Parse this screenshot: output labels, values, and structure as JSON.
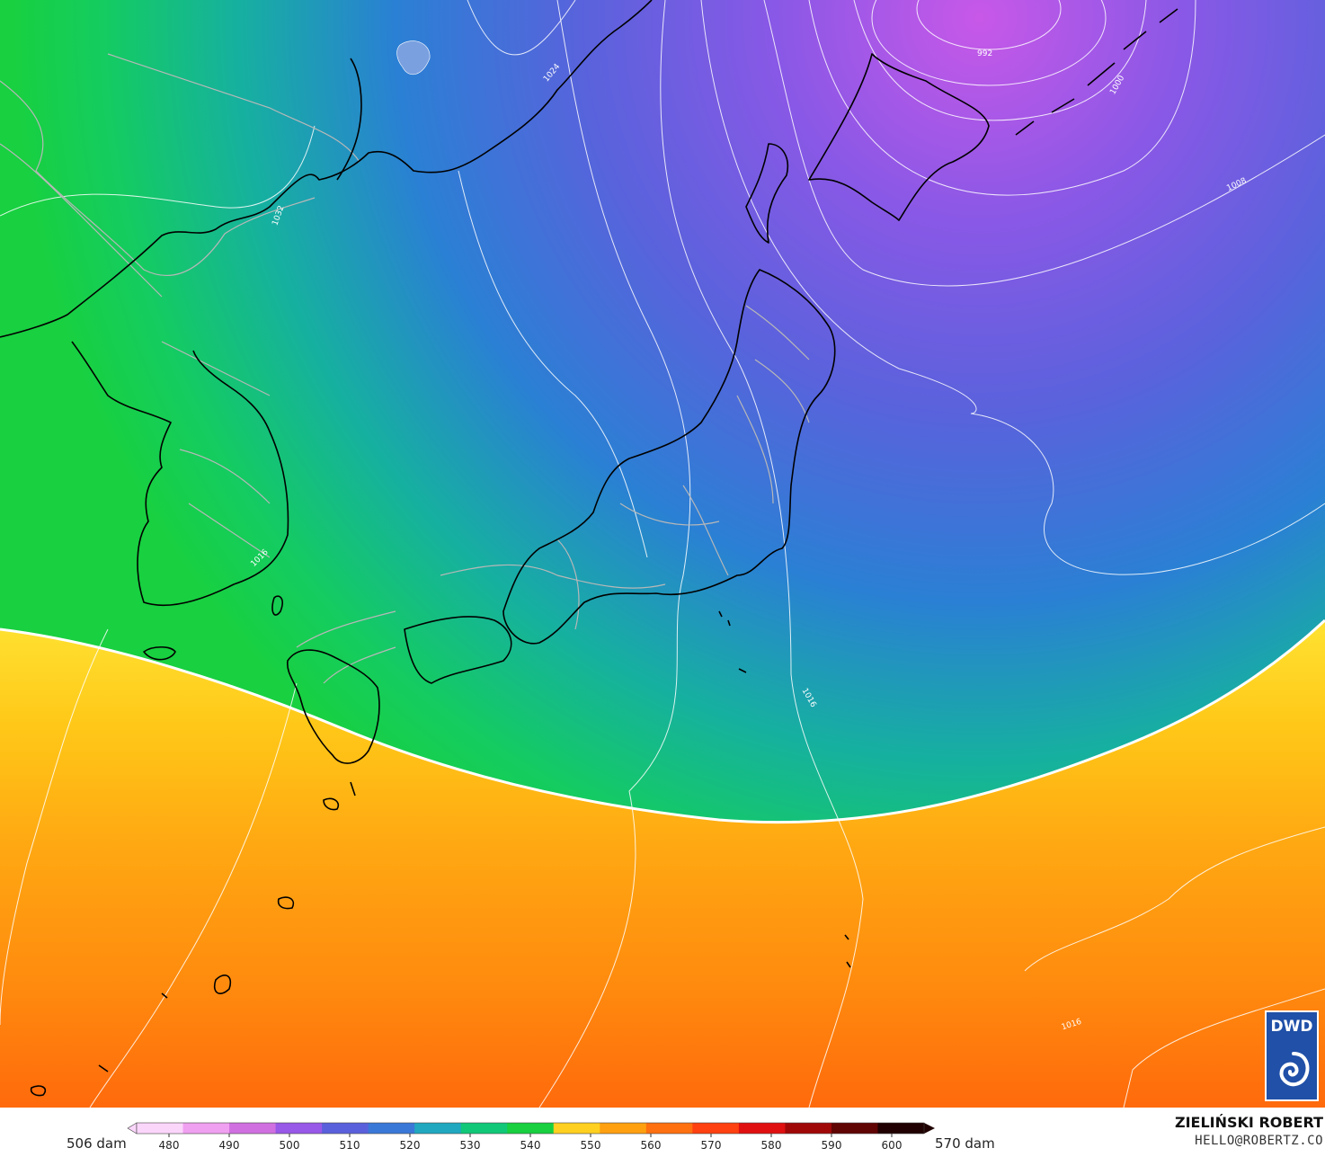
{
  "colorbar": {
    "left_label": "506 dam",
    "right_label": "570 dam",
    "ticks": [
      "480",
      "490",
      "500",
      "510",
      "520",
      "530",
      "540",
      "550",
      "560",
      "570",
      "580",
      "590",
      "600"
    ],
    "colors": [
      "#fbd6fb",
      "#f0a0f0",
      "#d070e0",
      "#9858e8",
      "#5a60dc",
      "#3a78d8",
      "#20a8c0",
      "#10c878",
      "#18d040",
      "#ffd020",
      "#ffa010",
      "#ff7010",
      "#ff4010",
      "#e01010",
      "#a00808",
      "#600404",
      "#200000"
    ]
  },
  "isobars": {
    "labels": [
      "992",
      "1000",
      "1008",
      "1016",
      "1016",
      "1024",
      "1032",
      "1016"
    ]
  },
  "credit": {
    "name": "ZIELIŃSKI ROBERT",
    "email": "HELLO@ROBERTZ.CO"
  },
  "logo": {
    "text": "DWD"
  },
  "colors": {
    "coastline": "#000000",
    "borders": "#b8b8b8",
    "isobar": "#ffffff",
    "accent_570_line": "#ffffff"
  }
}
